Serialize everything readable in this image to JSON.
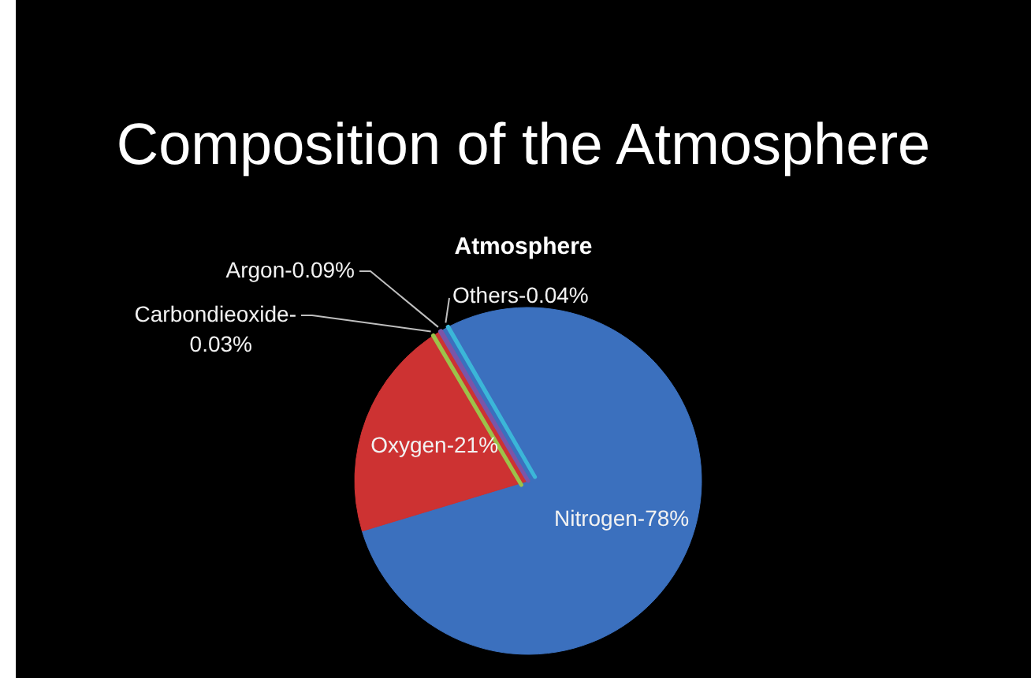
{
  "chart_data": {
    "type": "pie",
    "title": "Composition of the Atmosphere",
    "subtitle": "Atmosphere",
    "categories": [
      "Nitrogen-",
      "Oxygen-",
      "Carbondieoxide-",
      "Argon-",
      "Others-"
    ],
    "values": [
      78,
      21,
      0.03,
      0.09,
      0.04
    ],
    "colors": [
      "#3b70be",
      "#cd3232",
      "#9cc24a",
      "#7b55a8",
      "#3bb6d8"
    ],
    "value_labels": [
      "78%",
      "21%",
      "0.03%",
      "0.09%",
      "0.04%"
    ]
  }
}
